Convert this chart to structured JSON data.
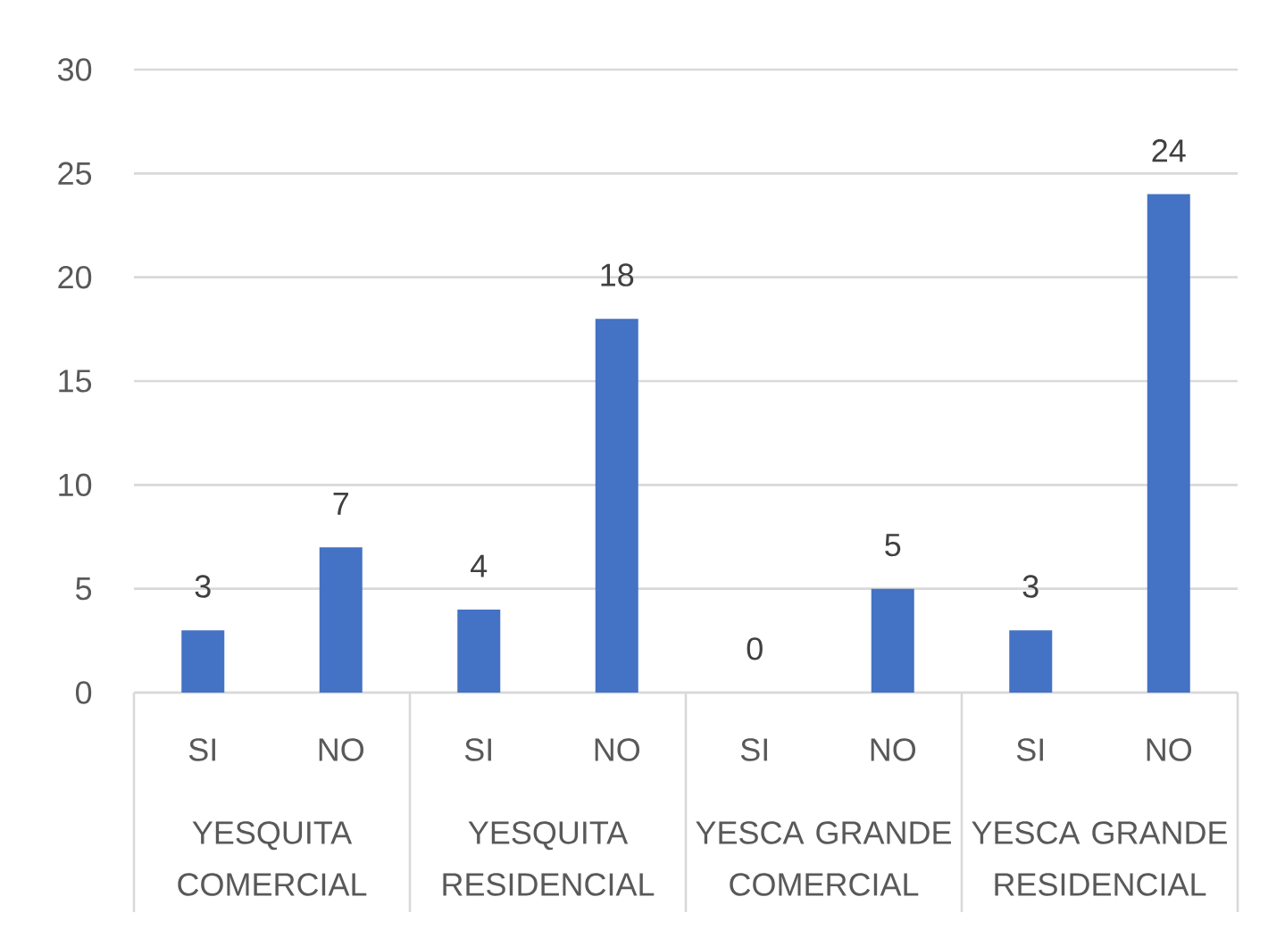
{
  "chart_data": {
    "type": "bar",
    "categories": [
      "SI",
      "NO",
      "SI",
      "NO",
      "SI",
      "NO",
      "SI",
      "NO"
    ],
    "values": [
      3,
      7,
      4,
      18,
      0,
      5,
      3,
      24
    ],
    "color": "#4472c4",
    "ylim": [
      0,
      30
    ],
    "yticks": [
      0,
      5,
      10,
      15,
      20,
      25,
      30
    ],
    "grid": "y",
    "data_labels": true,
    "annotations": [
      "YESQUITA COMERCIAL",
      "YESQUITA RESIDENCIAL",
      "YESCA GRANDE COMERCIAL",
      "YESCA GRANDE RESIDENCIAL"
    ]
  }
}
